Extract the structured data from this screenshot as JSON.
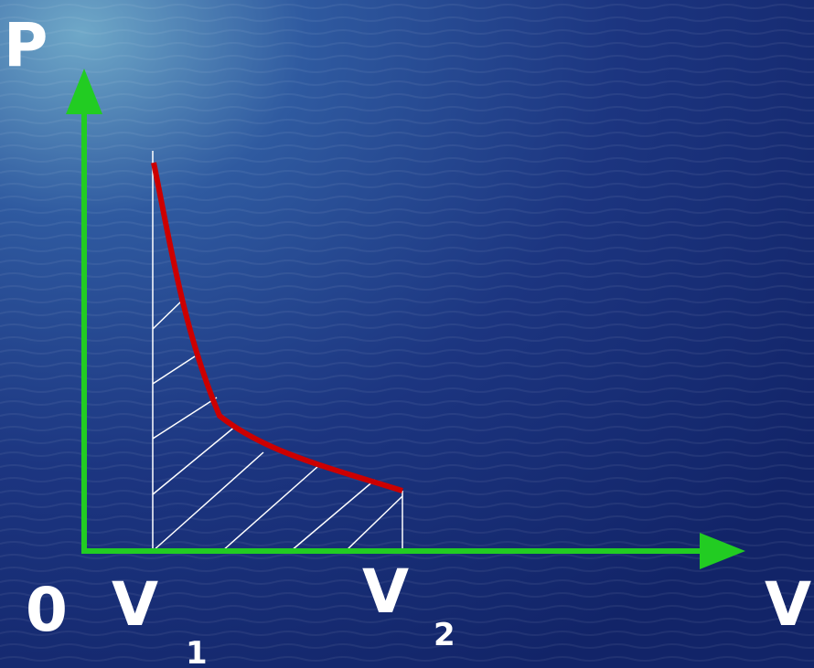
{
  "axes": {
    "y_label": "P",
    "x_label": "V",
    "origin": "0"
  },
  "points": [
    {
      "letter": "V",
      "subscript": "1"
    },
    {
      "letter": "V",
      "subscript": "2"
    }
  ]
}
